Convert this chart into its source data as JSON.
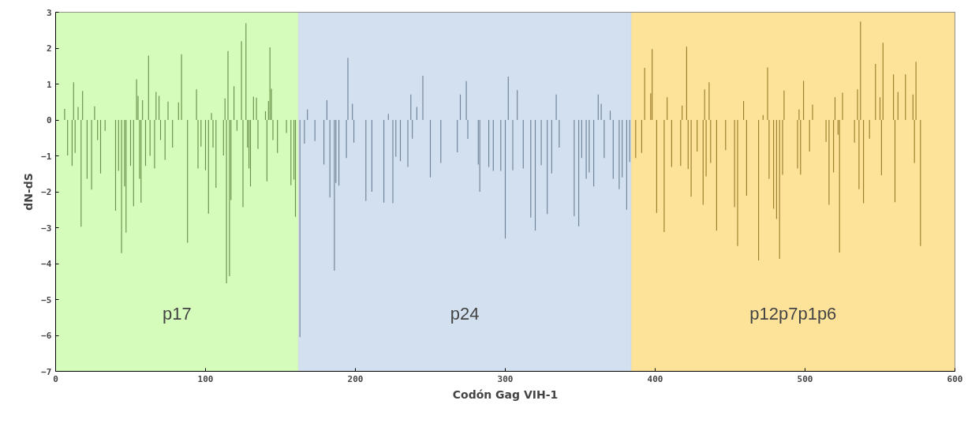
{
  "chart_data": {
    "type": "bar",
    "xlabel": "Codón Gag VIH-1",
    "ylabel": "dN-dS",
    "xlim": [
      0,
      600
    ],
    "ylim": [
      -7,
      3
    ],
    "xticks": [
      0,
      100,
      200,
      300,
      400,
      500,
      600
    ],
    "yticks": [
      -7,
      -6,
      -5,
      -4,
      -3,
      -2,
      -1,
      0,
      1,
      2,
      3
    ],
    "grid": false,
    "bands": [
      {
        "axis": "x",
        "from": 0,
        "to": 162,
        "label": "p17",
        "color": "#d6fcbc"
      },
      {
        "axis": "x",
        "from": 162,
        "to": 384,
        "label": "p24",
        "color": "#d2e0f0"
      },
      {
        "axis": "x",
        "from": 384,
        "to": 600,
        "label": "p12p7p1p6",
        "color": "#fde39a"
      }
    ],
    "series": [
      {
        "color": "#6a8f4a",
        "x": [
          6,
          8,
          11,
          12,
          13,
          15,
          17,
          18,
          21,
          24,
          26,
          28,
          30,
          33,
          40,
          42,
          44,
          46,
          47,
          50,
          52,
          54,
          55,
          56,
          57,
          58,
          60,
          62,
          63,
          66,
          67,
          69,
          70,
          73,
          75,
          78,
          82,
          84,
          88,
          94,
          95,
          97,
          100,
          102,
          104,
          105,
          107,
          112,
          113,
          114,
          115,
          116,
          117,
          119,
          121,
          124,
          125,
          127,
          128,
          129,
          130,
          132,
          134,
          135,
          140,
          141,
          142,
          143,
          144,
          145,
          148,
          154,
          157,
          159,
          160
        ],
        "values": [
          0.31,
          -0.99,
          -1.28,
          1.05,
          -0.92,
          0.36,
          -2.97,
          0.81,
          -1.64,
          -1.94,
          0.38,
          -0.56,
          -1.49,
          -0.3,
          -2.53,
          -1.42,
          -3.71,
          -1.85,
          -3.14,
          -1.28,
          -2.4,
          1.13,
          0.67,
          -1.64,
          -2.3,
          0.55,
          -1.28,
          1.79,
          -1.0,
          -1.35,
          0.78,
          0.67,
          -0.56,
          -1.11,
          0.51,
          -0.77,
          0.49,
          1.83,
          -3.42,
          0.85,
          -1.35,
          -0.74,
          -1.4,
          -2.61,
          0.19,
          -0.77,
          -1.89,
          -0.99,
          0.6,
          -4.55,
          1.92,
          -4.35,
          -2.23,
          0.94,
          -0.3,
          2.19,
          -2.43,
          2.69,
          -0.77,
          -1.35,
          -1.85,
          0.65,
          0.62,
          -0.81,
          0.24,
          -1.71,
          0.53,
          2.02,
          0.87,
          -0.56,
          -0.92,
          -0.36,
          -1.82,
          -1.66,
          -2.7
        ]
      },
      {
        "color": "#6f8296",
        "x": [
          163,
          166,
          168,
          173,
          179,
          181,
          183,
          186,
          187,
          189,
          194,
          195,
          198,
          199,
          207,
          211,
          219,
          222,
          225,
          227,
          230,
          235,
          237,
          238,
          241,
          245,
          250,
          257,
          268,
          270,
          274,
          275,
          282,
          283,
          289,
          292,
          297,
          300,
          302,
          305,
          308,
          312,
          317,
          320,
          324,
          328,
          331,
          334,
          336,
          346,
          349,
          351,
          354,
          356,
          359,
          362,
          364,
          366,
          370,
          372,
          376,
          378,
          381,
          383
        ],
        "values": [
          -6.05,
          -0.66,
          0.29,
          -0.59,
          -1.24,
          0.55,
          -2.16,
          -4.2,
          -1.75,
          -1.83,
          -1.06,
          1.73,
          0.45,
          -0.63,
          -2.25,
          -2.0,
          -2.3,
          0.17,
          -2.32,
          -1.02,
          -1.15,
          -1.31,
          0.71,
          -0.52,
          0.36,
          1.23,
          -1.6,
          -1.2,
          -0.9,
          0.71,
          1.08,
          -0.53,
          -1.24,
          -2.0,
          -1.31,
          -1.42,
          -1.42,
          -3.3,
          1.21,
          -1.4,
          0.83,
          -1.35,
          -2.72,
          -3.08,
          -1.26,
          -2.62,
          -1.49,
          0.71,
          -0.77,
          -2.68,
          -2.96,
          -1.06,
          -1.64,
          -1.46,
          -1.85,
          0.71,
          0.45,
          -1.06,
          0.26,
          -1.64,
          -1.93,
          -1.6,
          -2.5,
          -1.17
        ]
      },
      {
        "color": "#9a7d2a",
        "x": [
          387,
          391,
          393,
          397,
          398,
          401,
          406,
          408,
          411,
          417,
          418,
          421,
          422,
          424,
          428,
          432,
          433,
          434,
          436,
          437,
          441,
          447,
          453,
          455,
          459,
          461,
          469,
          472,
          475,
          476,
          479,
          481,
          483,
          485,
          486,
          495,
          496,
          497,
          499,
          503,
          505,
          514,
          516,
          519,
          520,
          522,
          523,
          525,
          533,
          535,
          536,
          537,
          539,
          543,
          547,
          550,
          551,
          552,
          559,
          560,
          562,
          567,
          572,
          573,
          574,
          577
        ],
        "values": [
          -1.06,
          -0.92,
          1.45,
          0.74,
          1.97,
          -2.59,
          -3.12,
          0.63,
          -1.31,
          -1.28,
          0.4,
          2.04,
          -1.37,
          -2.14,
          -0.88,
          -2.36,
          0.85,
          -1.57,
          1.05,
          -1.2,
          -3.08,
          -0.84,
          -2.43,
          -3.51,
          0.53,
          -2.11,
          -3.91,
          0.14,
          1.46,
          -1.64,
          -2.47,
          -2.76,
          -3.87,
          -1.53,
          0.82,
          -1.35,
          0.29,
          -1.52,
          1.09,
          -0.88,
          0.43,
          -0.61,
          -2.36,
          -1.46,
          0.63,
          -0.41,
          -3.69,
          0.76,
          -0.63,
          0.85,
          -1.93,
          2.74,
          -2.32,
          -0.52,
          1.56,
          0.63,
          -1.54,
          2.15,
          1.27,
          -2.29,
          0.78,
          1.27,
          0.71,
          -1.2,
          1.62,
          -3.51
        ]
      }
    ]
  }
}
